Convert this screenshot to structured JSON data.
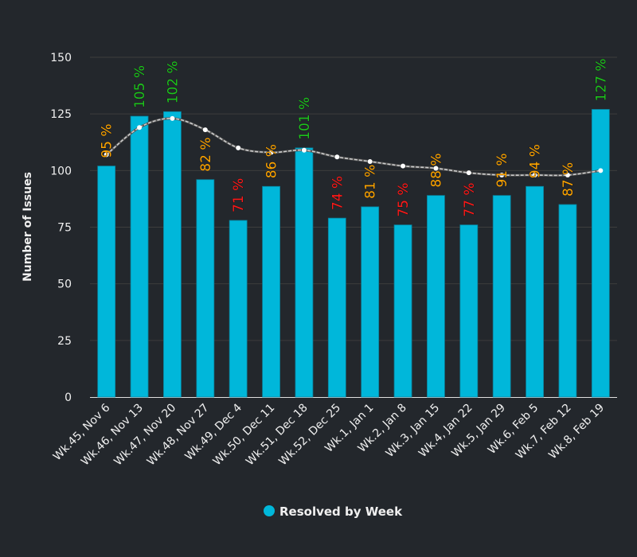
{
  "chart_data": {
    "type": "bar",
    "title": "",
    "xlabel": "",
    "ylabel": "Number of Issues",
    "ylim": [
      0,
      150
    ],
    "yticks": [
      0,
      25,
      50,
      75,
      100,
      125,
      150
    ],
    "grid": true,
    "legend_position": "bottom",
    "categories": [
      "Wk.45, Nov 6",
      "Wk.46, Nov 13",
      "Wk.47, Nov 20",
      "Wk.48, Nov 27",
      "Wk.49, Dec 4",
      "Wk.50, Dec 11",
      "Wk.51, Dec 18",
      "Wk.52, Dec 25",
      "Wk.1, Jan 1",
      "Wk.2, Jan 8",
      "Wk.3, Jan 15",
      "Wk.4, Jan 22",
      "Wk.5, Jan 29",
      "Wk.6, Feb 5",
      "Wk.7, Feb 12",
      "Wk.8, Feb 19"
    ],
    "series": [
      {
        "name": "Resolved by Week",
        "type": "bar",
        "color": "#00b7da",
        "values": [
          102,
          124,
          126,
          96,
          78,
          93,
          110,
          79,
          84,
          76,
          89,
          76,
          89,
          93,
          85,
          127
        ]
      },
      {
        "type": "line",
        "style": "dashed-smooth",
        "color": "#cccccc",
        "values": [
          107,
          119,
          123,
          118,
          110,
          108,
          109,
          106,
          104,
          102,
          101,
          99,
          98,
          98,
          98,
          100
        ]
      }
    ],
    "data_labels": [
      {
        "text": "95 %",
        "color": "#ffa500"
      },
      {
        "text": "105 %",
        "color": "#1ec31e"
      },
      {
        "text": "102 %",
        "color": "#1ec31e"
      },
      {
        "text": "82 %",
        "color": "#ffa500"
      },
      {
        "text": "71 %",
        "color": "#ff1a1a"
      },
      {
        "text": "86 %",
        "color": "#ffa500"
      },
      {
        "text": "101 %",
        "color": "#1ec31e"
      },
      {
        "text": "74 %",
        "color": "#ff1a1a"
      },
      {
        "text": "81 %",
        "color": "#ffa500"
      },
      {
        "text": "75 %",
        "color": "#ff1a1a"
      },
      {
        "text": "88 %",
        "color": "#ffa500"
      },
      {
        "text": "77 %",
        "color": "#ff1a1a"
      },
      {
        "text": "91 %",
        "color": "#ffa500"
      },
      {
        "text": "94 %",
        "color": "#ffa500"
      },
      {
        "text": "87 %",
        "color": "#ffa500"
      },
      {
        "text": "127 %",
        "color": "#1ec31e"
      }
    ]
  }
}
